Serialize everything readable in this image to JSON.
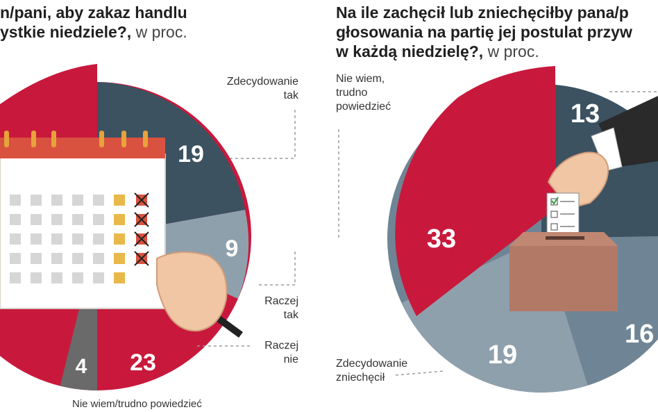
{
  "colors": {
    "crimson": "#c8193c",
    "dark_slate": "#3c5261",
    "mid_slate": "#6f8595",
    "light_slate": "#8fa0ad",
    "grey": "#6a6a6a",
    "leader": "#9a9a9a"
  },
  "left": {
    "title_line1": "n/pani, aby zakaz handlu",
    "title_line2": "ystkie niedziele?,",
    "unit": " w proc.",
    "labels": {
      "zdecydowanie_tak": [
        "Zdecydowanie",
        "tak"
      ],
      "raczej_tak": [
        "Raczej",
        "tak"
      ],
      "raczej_nie": [
        "Raczej",
        "nie"
      ],
      "nie_wiem": "Nie wiem/trudno powiedzieć"
    }
  },
  "right": {
    "title_line1": "Na ile zachęcił lub zniechęciłby pana/p",
    "title_line2": "głosowania na partię jej postulat przyw",
    "title_line3": "w każdą niedzielę?,",
    "unit": " w proc.",
    "labels": {
      "nie_wiem": [
        "Nie wiem,",
        "trudno",
        "powiedzieć"
      ],
      "zdecydowanie_zniechecil": [
        "Zdecydowanie",
        "zniechęcił"
      ]
    }
  },
  "chart_data": [
    {
      "type": "pie",
      "title": "n/pani, aby zakaz handlu ystkie niedziele?, w proc.",
      "slices": [
        {
          "label": "Zdecydowanie tak",
          "value": 19,
          "color": "#3c5261"
        },
        {
          "label": "Raczej tak",
          "value": 9,
          "color": "#8fa0ad"
        },
        {
          "label": "Raczej nie",
          "value": 23,
          "color": "#c8193c"
        },
        {
          "label": "Nie wiem/trudno powiedzieć",
          "value": 4,
          "color": "#6a6a6a"
        },
        {
          "label": "",
          "value": 45,
          "color": "#c8193c"
        }
      ]
    },
    {
      "type": "pie",
      "title": "Na ile zachęcił lub zniechęciłby pana/p głosowania na partię jej postulat przyw w każdą niedzielę?, w proc.",
      "slices": [
        {
          "label": "",
          "value": 13,
          "color": "#3c5261"
        },
        {
          "label": "",
          "value": 19,
          "color": "#3c5261"
        },
        {
          "label": "",
          "value": 16,
          "color": "#6f8595"
        },
        {
          "label": "Zdecydowanie zniechęcił",
          "value": 19,
          "color": "#8fa0ad"
        },
        {
          "label": "Nie wiem, trudno powiedzieć",
          "value": 33,
          "color": "#c8193c"
        }
      ]
    }
  ]
}
